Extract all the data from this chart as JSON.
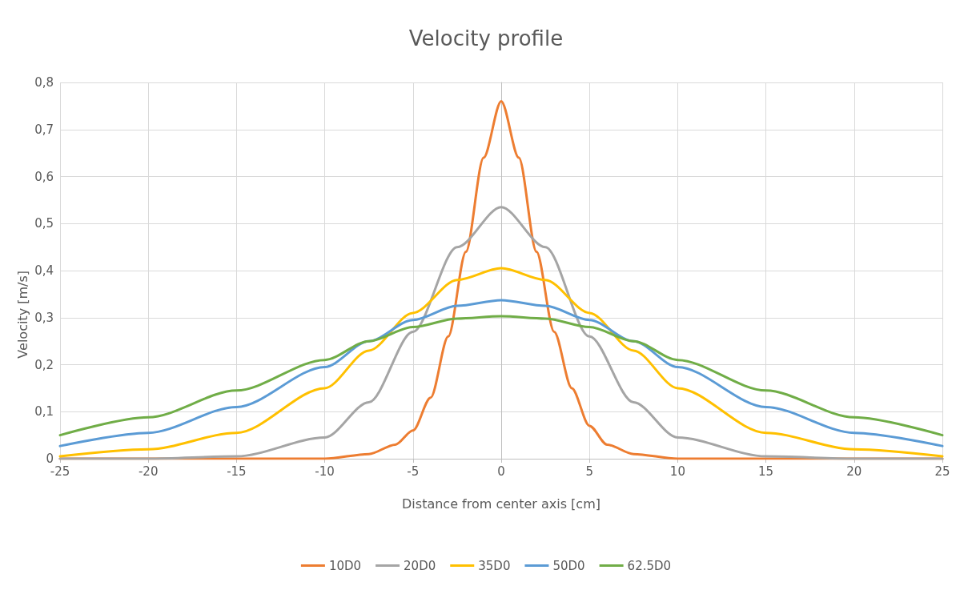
{
  "chart_data": {
    "type": "line",
    "title": "Velocity profile",
    "xlabel": "Distance from center axis [cm]",
    "ylabel": "Velocity [m/s]",
    "xlim": [
      -25,
      25
    ],
    "xticks": [
      -25,
      -20,
      -15,
      -10,
      -5,
      0,
      5,
      10,
      15,
      20,
      25
    ],
    "ylim": [
      0,
      0.8
    ],
    "yticks": [
      0,
      {
        "value": 0.1,
        "label": "0,1"
      },
      {
        "value": 0.2,
        "label": "0,2"
      },
      {
        "value": 0.3,
        "label": "0,3"
      },
      {
        "value": 0.4,
        "label": "0,4"
      },
      {
        "value": 0.5,
        "label": "0,5"
      },
      {
        "value": 0.6,
        "label": "0,6"
      },
      {
        "value": 0.7,
        "label": "0,7"
      },
      {
        "value": 0.8,
        "label": "0,8"
      }
    ],
    "grid": true,
    "legend": "bottom",
    "marker": "none",
    "line_style": "solid",
    "series": [
      {
        "name": "10D0",
        "color": "#ed7d31",
        "x": [
          -25,
          -10,
          -7.5,
          -6,
          -5,
          -4,
          -3,
          -2,
          -1,
          0,
          1,
          2,
          3,
          4,
          5,
          6,
          7.5,
          10,
          25
        ],
        "values": [
          0,
          0,
          0.01,
          0.03,
          0.06,
          0.13,
          0.26,
          0.44,
          0.64,
          0.76,
          0.64,
          0.44,
          0.27,
          0.15,
          0.07,
          0.03,
          0.01,
          0,
          0
        ]
      },
      {
        "name": "20D0",
        "color": "#a5a5a5",
        "x": [
          -25,
          -20,
          -15,
          -10,
          -7.5,
          -5,
          -2.5,
          0,
          2.5,
          5,
          7.5,
          10,
          15,
          20,
          25
        ],
        "values": [
          0,
          0,
          0.005,
          0.045,
          0.12,
          0.27,
          0.45,
          0.535,
          0.45,
          0.26,
          0.12,
          0.045,
          0.005,
          0,
          0
        ]
      },
      {
        "name": "35D0",
        "color": "#ffc000",
        "x": [
          -25,
          -20,
          -15,
          -10,
          -7.5,
          -5,
          -2.5,
          0,
          2.5,
          5,
          7.5,
          10,
          15,
          20,
          25
        ],
        "values": [
          0.005,
          0.02,
          0.055,
          0.15,
          0.23,
          0.31,
          0.38,
          0.405,
          0.38,
          0.31,
          0.23,
          0.15,
          0.055,
          0.02,
          0.005
        ]
      },
      {
        "name": "50D0",
        "color": "#5b9bd5",
        "x": [
          -25,
          -20,
          -15,
          -10,
          -7.5,
          -5,
          -2.5,
          0,
          2.5,
          5,
          7.5,
          10,
          15,
          20,
          25
        ],
        "values": [
          0.027,
          0.055,
          0.11,
          0.195,
          0.25,
          0.295,
          0.325,
          0.337,
          0.325,
          0.295,
          0.25,
          0.195,
          0.11,
          0.055,
          0.027
        ]
      },
      {
        "name": "62.5D0",
        "color": "#70ad47",
        "x": [
          -25,
          -20,
          -15,
          -10,
          -7.5,
          -5,
          -2.5,
          0,
          2.5,
          5,
          7.5,
          10,
          15,
          20,
          25
        ],
        "values": [
          0.05,
          0.088,
          0.145,
          0.21,
          0.25,
          0.28,
          0.298,
          0.303,
          0.298,
          0.28,
          0.25,
          0.21,
          0.145,
          0.088,
          0.05
        ]
      }
    ]
  }
}
